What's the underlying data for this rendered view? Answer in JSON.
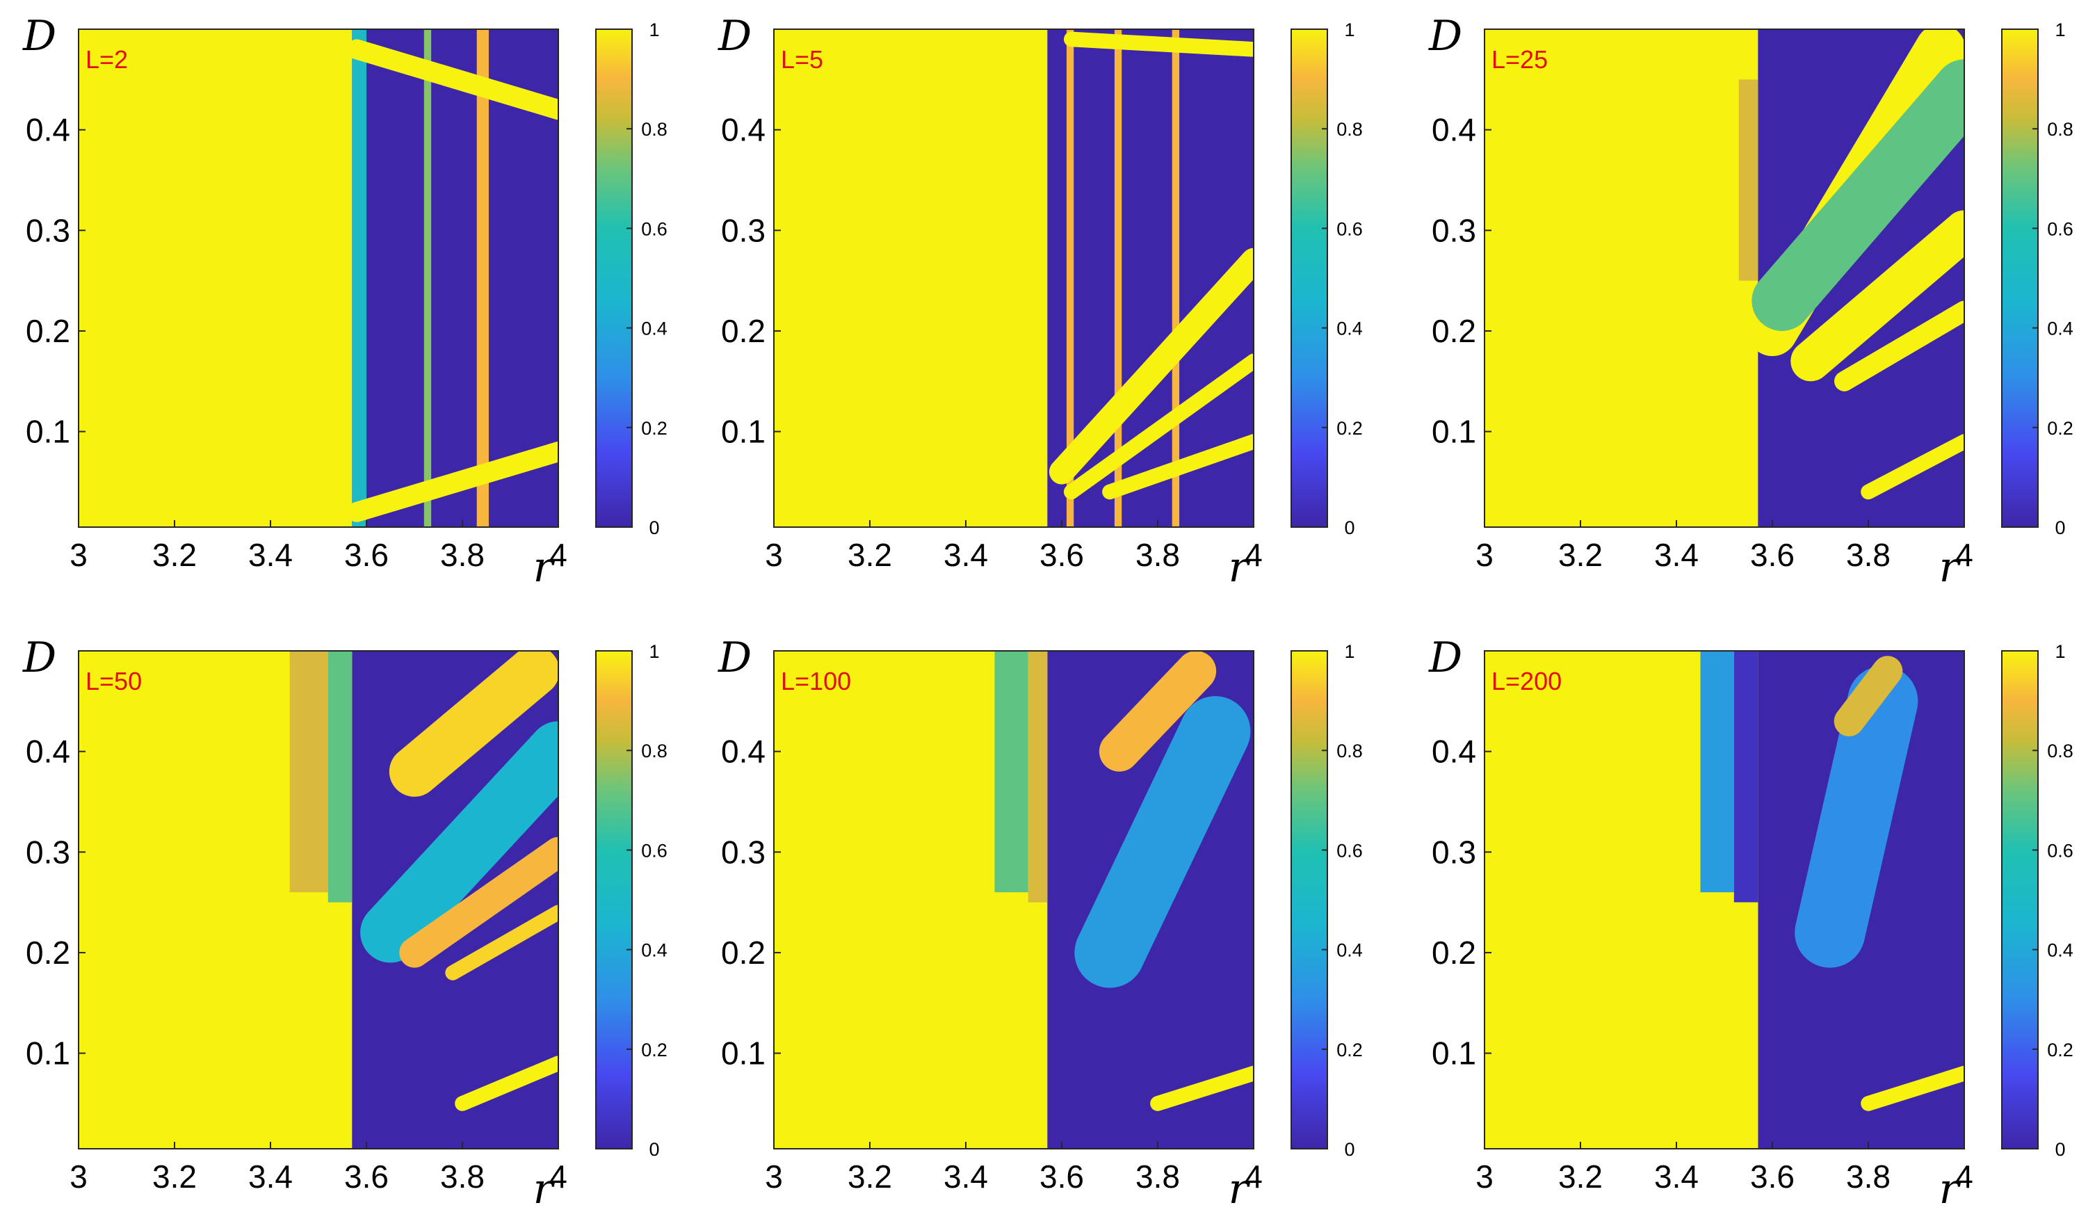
{
  "colors": {
    "low": "#3e26a8",
    "mid_low": "#2f8fe8",
    "mid": "#21c0b1",
    "mid_high": "#a6bd2b",
    "orange": "#f7b63e",
    "high": "#f8f211",
    "tag": "#e01010"
  },
  "chart_data": [
    {
      "type": "heatmap",
      "label": "L=2",
      "xlabel": "r",
      "ylabel": "D",
      "xlim": [
        3,
        4
      ],
      "ylim": [
        0.005,
        0.5
      ],
      "xticks": [
        "3",
        "3.2",
        "3.4",
        "3.6",
        "3.8",
        "4"
      ],
      "yticks": [
        "0.1",
        "0.2",
        "0.3",
        "0.4"
      ],
      "colorbar": {
        "range": [
          0,
          1
        ],
        "ticks": [
          "0",
          "0.2",
          "0.4",
          "0.6",
          "0.8",
          "1"
        ]
      },
      "boundary_r": 3.57,
      "regions": [
        {
          "r": [
            3.0,
            3.57
          ],
          "D": [
            0.005,
            0.5
          ],
          "value": 1
        },
        {
          "r": [
            3.57,
            4.0
          ],
          "D": [
            0.005,
            0.5
          ],
          "value": 0
        },
        {
          "r": [
            3.57,
            3.6
          ],
          "D": [
            0.005,
            0.5
          ],
          "value": 0.5
        },
        {
          "r": [
            3.72,
            3.735
          ],
          "D": [
            0.005,
            0.5
          ],
          "value": 0.75
        },
        {
          "r": [
            3.83,
            3.855
          ],
          "D": [
            0.005,
            0.5
          ],
          "value": 0.9
        }
      ],
      "bands": [
        {
          "r": [
            3.58,
            4.0
          ],
          "D_start": 0.48,
          "D_end": 0.42,
          "width": 0.02,
          "value": 1
        },
        {
          "r": [
            3.58,
            4.0
          ],
          "D_start": 0.02,
          "D_end": 0.08,
          "width": 0.02,
          "value": 1
        }
      ]
    },
    {
      "type": "heatmap",
      "label": "L=5",
      "xlabel": "r",
      "ylabel": "D",
      "xlim": [
        3,
        4
      ],
      "ylim": [
        0.005,
        0.5
      ],
      "xticks": [
        "3",
        "3.2",
        "3.4",
        "3.6",
        "3.8",
        "4"
      ],
      "yticks": [
        "0.1",
        "0.2",
        "0.3",
        "0.4"
      ],
      "colorbar": {
        "range": [
          0,
          1
        ],
        "ticks": [
          "0",
          "0.2",
          "0.4",
          "0.6",
          "0.8",
          "1"
        ]
      },
      "boundary_r": 3.57,
      "regions": [
        {
          "r": [
            3.0,
            3.57
          ],
          "D": [
            0.005,
            0.5
          ],
          "value": 1
        },
        {
          "r": [
            3.57,
            4.0
          ],
          "D": [
            0.005,
            0.5
          ],
          "value": 0
        },
        {
          "r": [
            3.61,
            3.625
          ],
          "D": [
            0.005,
            0.5
          ],
          "value": 0.9
        },
        {
          "r": [
            3.71,
            3.725
          ],
          "D": [
            0.005,
            0.5
          ],
          "value": 0.9
        },
        {
          "r": [
            3.83,
            3.845
          ],
          "D": [
            0.005,
            0.5
          ],
          "value": 0.9
        }
      ],
      "bands": [
        {
          "r": [
            3.62,
            4.0
          ],
          "D_start": 0.49,
          "D_end": 0.48,
          "width": 0.015,
          "value": 1
        },
        {
          "r": [
            3.6,
            4.0
          ],
          "D_start": 0.06,
          "D_end": 0.27,
          "width": 0.025,
          "value": 1
        },
        {
          "r": [
            3.62,
            4.0
          ],
          "D_start": 0.04,
          "D_end": 0.17,
          "width": 0.015,
          "value": 1
        },
        {
          "r": [
            3.7,
            4.0
          ],
          "D_start": 0.04,
          "D_end": 0.09,
          "width": 0.015,
          "value": 1
        }
      ]
    },
    {
      "type": "heatmap",
      "label": "L=25",
      "xlabel": "r",
      "ylabel": "D",
      "xlim": [
        3,
        4
      ],
      "ylim": [
        0.005,
        0.5
      ],
      "xticks": [
        "3",
        "3.2",
        "3.4",
        "3.6",
        "3.8",
        "4"
      ],
      "yticks": [
        "0.1",
        "0.2",
        "0.3",
        "0.4"
      ],
      "colorbar": {
        "range": [
          0,
          1
        ],
        "ticks": [
          "0",
          "0.2",
          "0.4",
          "0.6",
          "0.8",
          "1"
        ]
      },
      "boundary_r": 3.57,
      "regions": [
        {
          "r": [
            3.0,
            3.57
          ],
          "D": [
            0.005,
            0.5
          ],
          "value": 1
        },
        {
          "r": [
            3.57,
            4.0
          ],
          "D": [
            0.005,
            0.5
          ],
          "value": 0
        },
        {
          "r": [
            3.53,
            3.57
          ],
          "D": [
            0.25,
            0.45
          ],
          "value": 0.85
        }
      ],
      "bands": [
        {
          "r": [
            3.6,
            3.95
          ],
          "D_start": 0.2,
          "D_end": 0.48,
          "width": 0.05,
          "value": 1
        },
        {
          "r": [
            3.62,
            4.0
          ],
          "D_start": 0.23,
          "D_end": 0.44,
          "width": 0.06,
          "value": 0.7
        },
        {
          "r": [
            3.68,
            4.0
          ],
          "D_start": 0.17,
          "D_end": 0.3,
          "width": 0.04,
          "value": 1
        },
        {
          "r": [
            3.75,
            4.0
          ],
          "D_start": 0.15,
          "D_end": 0.22,
          "width": 0.02,
          "value": 1
        },
        {
          "r": [
            3.8,
            4.0
          ],
          "D_start": 0.04,
          "D_end": 0.09,
          "width": 0.015,
          "value": 1
        }
      ]
    },
    {
      "type": "heatmap",
      "label": "L=50",
      "xlabel": "r",
      "ylabel": "D",
      "xlim": [
        3,
        4
      ],
      "ylim": [
        0.005,
        0.5
      ],
      "xticks": [
        "3",
        "3.2",
        "3.4",
        "3.6",
        "3.8",
        "4"
      ],
      "yticks": [
        "0.1",
        "0.2",
        "0.3",
        "0.4"
      ],
      "colorbar": {
        "range": [
          0,
          1
        ],
        "ticks": [
          "0",
          "0.2",
          "0.4",
          "0.6",
          "0.8",
          "1"
        ]
      },
      "boundary_r": 3.57,
      "regions": [
        {
          "r": [
            3.0,
            3.57
          ],
          "D": [
            0.005,
            0.5
          ],
          "value": 1
        },
        {
          "r": [
            3.57,
            4.0
          ],
          "D": [
            0.005,
            0.5
          ],
          "value": 0
        },
        {
          "r": [
            3.44,
            3.52
          ],
          "D": [
            0.26,
            0.5
          ],
          "value": 0.85
        },
        {
          "r": [
            3.52,
            3.57
          ],
          "D": [
            0.25,
            0.5
          ],
          "value": 0.7
        }
      ],
      "bands": [
        {
          "r": [
            3.7,
            3.95
          ],
          "D_start": 0.38,
          "D_end": 0.48,
          "width": 0.05,
          "value": 0.95
        },
        {
          "r": [
            3.65,
            4.0
          ],
          "D_start": 0.22,
          "D_end": 0.4,
          "width": 0.06,
          "value": 0.45
        },
        {
          "r": [
            3.7,
            4.0
          ],
          "D_start": 0.2,
          "D_end": 0.3,
          "width": 0.03,
          "value": 0.9
        },
        {
          "r": [
            3.78,
            4.0
          ],
          "D_start": 0.18,
          "D_end": 0.24,
          "width": 0.015,
          "value": 0.95
        },
        {
          "r": [
            3.8,
            4.0
          ],
          "D_start": 0.05,
          "D_end": 0.09,
          "width": 0.015,
          "value": 1
        }
      ]
    },
    {
      "type": "heatmap",
      "label": "L=100",
      "xlabel": "r",
      "ylabel": "D",
      "xlim": [
        3,
        4
      ],
      "ylim": [
        0.005,
        0.5
      ],
      "xticks": [
        "3",
        "3.2",
        "3.4",
        "3.6",
        "3.8",
        "4"
      ],
      "yticks": [
        "0.1",
        "0.2",
        "0.3",
        "0.4"
      ],
      "colorbar": {
        "range": [
          0,
          1
        ],
        "ticks": [
          "0",
          "0.2",
          "0.4",
          "0.6",
          "0.8",
          "1"
        ]
      },
      "boundary_r": 3.57,
      "regions": [
        {
          "r": [
            3.0,
            3.57
          ],
          "D": [
            0.005,
            0.5
          ],
          "value": 1
        },
        {
          "r": [
            3.57,
            4.0
          ],
          "D": [
            0.005,
            0.5
          ],
          "value": 0
        },
        {
          "r": [
            3.46,
            3.53
          ],
          "D": [
            0.26,
            0.5
          ],
          "value": 0.7
        },
        {
          "r": [
            3.53,
            3.57
          ],
          "D": [
            0.25,
            0.5
          ],
          "value": 0.85
        }
      ],
      "bands": [
        {
          "r": [
            3.7,
            3.92
          ],
          "D_start": 0.2,
          "D_end": 0.42,
          "width": 0.07,
          "value": 0.35
        },
        {
          "r": [
            3.72,
            3.88
          ],
          "D_start": 0.4,
          "D_end": 0.48,
          "width": 0.04,
          "value": 0.9
        },
        {
          "r": [
            3.8,
            4.0
          ],
          "D_start": 0.05,
          "D_end": 0.08,
          "width": 0.015,
          "value": 1
        }
      ]
    },
    {
      "type": "heatmap",
      "label": "L=200",
      "xlabel": "r",
      "ylabel": "D",
      "xlim": [
        3,
        4
      ],
      "ylim": [
        0.005,
        0.5
      ],
      "xticks": [
        "3",
        "3.2",
        "3.4",
        "3.6",
        "3.8",
        "4"
      ],
      "yticks": [
        "0.1",
        "0.2",
        "0.3",
        "0.4"
      ],
      "colorbar": {
        "range": [
          0,
          1
        ],
        "ticks": [
          "0",
          "0.2",
          "0.4",
          "0.6",
          "0.8",
          "1"
        ]
      },
      "boundary_r": 3.57,
      "regions": [
        {
          "r": [
            3.0,
            3.57
          ],
          "D": [
            0.005,
            0.5
          ],
          "value": 1
        },
        {
          "r": [
            3.57,
            4.0
          ],
          "D": [
            0.005,
            0.5
          ],
          "value": 0
        },
        {
          "r": [
            3.45,
            3.52
          ],
          "D": [
            0.26,
            0.5
          ],
          "value": 0.35
        },
        {
          "r": [
            3.52,
            3.57
          ],
          "D": [
            0.25,
            0.5
          ],
          "value": 0.05
        },
        {
          "r": [
            3.5,
            3.57
          ],
          "D": [
            0.005,
            0.25
          ],
          "value": 1
        }
      ],
      "bands": [
        {
          "r": [
            3.72,
            3.83
          ],
          "D_start": 0.22,
          "D_end": 0.45,
          "width": 0.07,
          "value": 0.3
        },
        {
          "r": [
            3.76,
            3.84
          ],
          "D_start": 0.43,
          "D_end": 0.48,
          "width": 0.03,
          "value": 0.85
        },
        {
          "r": [
            3.8,
            4.0
          ],
          "D_start": 0.05,
          "D_end": 0.08,
          "width": 0.015,
          "value": 1
        }
      ]
    }
  ]
}
